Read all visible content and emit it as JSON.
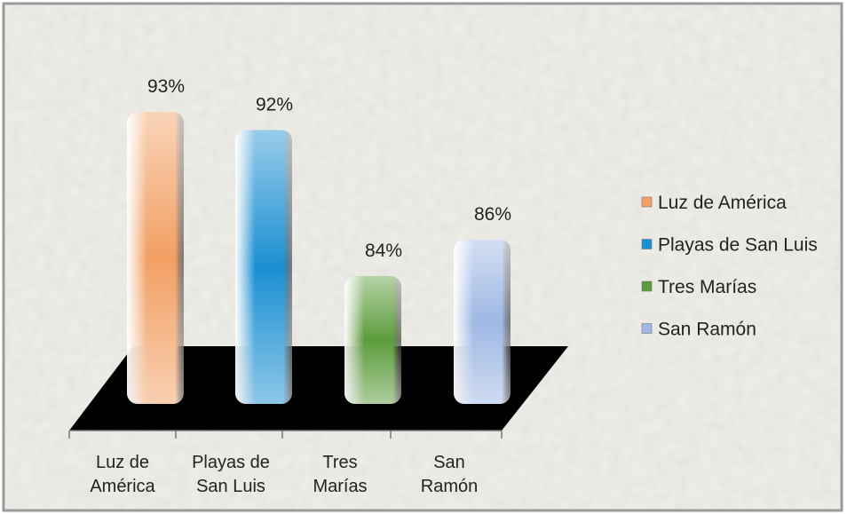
{
  "chart_data": {
    "type": "bar",
    "categories": [
      "Luz de América",
      "Playas de San Luis",
      "Tres Marías",
      "San Ramón"
    ],
    "values": [
      93,
      92,
      84,
      86
    ],
    "value_labels": [
      "93%",
      "92%",
      "84%",
      "86%"
    ],
    "colors": [
      "#f2a064",
      "#1b8fd2",
      "#5c9c3c",
      "#9fb8e4"
    ],
    "ylim": [
      77,
      95
    ],
    "legend": "right"
  }
}
